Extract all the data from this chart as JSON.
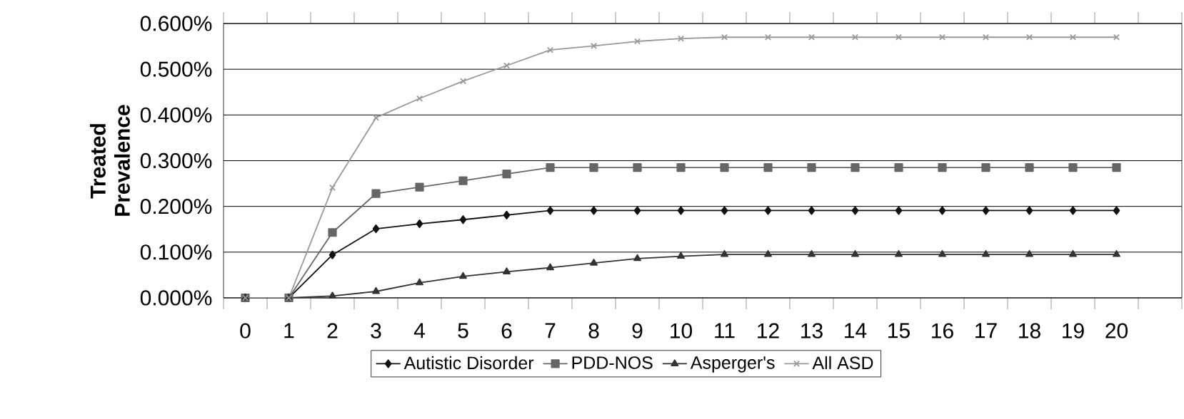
{
  "chart_data": {
    "type": "line",
    "ylabel": "Treated Prevalence",
    "categories": [
      "0",
      "1",
      "2",
      "3",
      "4",
      "5",
      "6",
      "7",
      "8",
      "9",
      "10",
      "11",
      "12",
      "13",
      "14",
      "15",
      "16",
      "17",
      "18",
      "19",
      "20"
    ],
    "series": [
      {
        "name": "Autistic Disorder",
        "color": "#111111",
        "marker": "diamond",
        "values": [
          0,
          0,
          0.094,
          0.151,
          0.162,
          0.171,
          0.181,
          0.191,
          0.191,
          0.191,
          0.191,
          0.191,
          0.191,
          0.191,
          0.191,
          0.191,
          0.191,
          0.191,
          0.191,
          0.191,
          0.191
        ]
      },
      {
        "name": "PDD-NOS",
        "color": "#666666",
        "marker": "square",
        "values": [
          0,
          0,
          0.143,
          0.228,
          0.242,
          0.256,
          0.271,
          0.285,
          0.285,
          0.285,
          0.285,
          0.285,
          0.285,
          0.285,
          0.285,
          0.285,
          0.285,
          0.285,
          0.285,
          0.285,
          0.285
        ]
      },
      {
        "name": "Asperger's",
        "color": "#333333",
        "marker": "triangle",
        "values": [
          0,
          0,
          0.004,
          0.014,
          0.033,
          0.047,
          0.057,
          0.066,
          0.076,
          0.086,
          0.091,
          0.095,
          0.095,
          0.095,
          0.095,
          0.095,
          0.095,
          0.095,
          0.095,
          0.095,
          0.095
        ]
      },
      {
        "name": "All ASD",
        "color": "#999999",
        "marker": "cross",
        "values": [
          0,
          0,
          0.241,
          0.394,
          0.436,
          0.474,
          0.508,
          0.542,
          0.551,
          0.561,
          0.567,
          0.57,
          0.57,
          0.57,
          0.57,
          0.57,
          0.57,
          0.57,
          0.57,
          0.57,
          0.57
        ]
      }
    ],
    "ylim": [
      0,
      0.6
    ],
    "yticks": [
      {
        "value": 0,
        "label": "0.000%"
      },
      {
        "value": 0.1,
        "label": "0.100%"
      },
      {
        "value": 0.2,
        "label": "0.200%"
      },
      {
        "value": 0.3,
        "label": "0.300%"
      },
      {
        "value": 0.4,
        "label": "0.400%"
      },
      {
        "value": 0.5,
        "label": "0.500%"
      },
      {
        "value": 0.6,
        "label": "0.600%"
      }
    ],
    "grid": "y",
    "legend": "bottom"
  }
}
